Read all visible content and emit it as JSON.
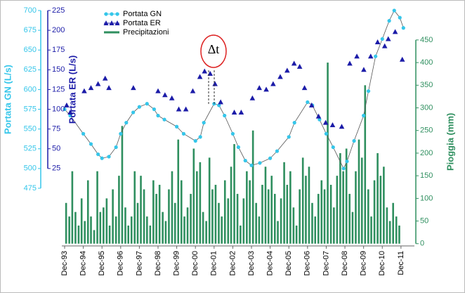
{
  "chart_data": {
    "type": "combo",
    "annotation": "Δt",
    "xlim": [
      1993.77,
      2012.64
    ],
    "xticks": [
      {
        "value": 1993.92,
        "label": "Dec-93"
      },
      {
        "value": 1994.92,
        "label": "Dec-94"
      },
      {
        "value": 1995.92,
        "label": "Dec-95"
      },
      {
        "value": 1996.92,
        "label": "Dec-96"
      },
      {
        "value": 1997.92,
        "label": "Dec-97"
      },
      {
        "value": 1998.92,
        "label": "Dec-98"
      },
      {
        "value": 1999.92,
        "label": "Dec-99"
      },
      {
        "value": 2000.92,
        "label": "Dec-00"
      },
      {
        "value": 2001.92,
        "label": "Dec-01"
      },
      {
        "value": 2002.92,
        "label": "Dec-02"
      },
      {
        "value": 2003.92,
        "label": "Dec-03"
      },
      {
        "value": 2004.92,
        "label": "Dec-04"
      },
      {
        "value": 2005.92,
        "label": "Dec-05"
      },
      {
        "value": 2006.92,
        "label": "Dec-06"
      },
      {
        "value": 2007.92,
        "label": "Dec-07"
      },
      {
        "value": 2008.92,
        "label": "Dec-08"
      },
      {
        "value": 2009.92,
        "label": "Dec-09"
      },
      {
        "value": 2010.92,
        "label": "Dec-10"
      },
      {
        "value": 2011.92,
        "label": "Dec-11"
      }
    ],
    "ylabel": "Portata GN (L/s)",
    "ylim": [
      402,
      700
    ],
    "yticks": [
      475,
      500,
      525,
      550,
      575,
      600,
      625,
      650,
      675,
      700
    ],
    "y2label": "Portata ER (L/s)",
    "y2lim": [
      -73,
      225
    ],
    "y2ticks": [
      25,
      50,
      75,
      100,
      125,
      150,
      175,
      200,
      225
    ],
    "y3label": "Pioggia (mm)",
    "y3lim": [
      -5,
      515
    ],
    "y3ticks": [
      0,
      50,
      100,
      150,
      200,
      250,
      300,
      350,
      400,
      450
    ],
    "series": [
      {
        "name": "Portata GN",
        "kind": "line",
        "color": "#35c6ea",
        "x": [
          1993.92,
          1994.22,
          1994.92,
          1995.33,
          1995.71,
          1995.92,
          1996.29,
          1996.67,
          1996.92,
          1997.22,
          1997.59,
          1997.92,
          1998.33,
          1998.71,
          1998.92,
          1999.26,
          1999.92,
          2000.29,
          2000.92,
          2001.18,
          2001.37,
          2001.92,
          2002.18,
          2002.48,
          2002.92,
          2003.22,
          2003.59,
          2003.92,
          2004.37,
          2004.92,
          2005.29,
          2005.92,
          2006.22,
          2006.92,
          2007.18,
          2007.56,
          2007.92,
          2008.29,
          2008.85,
          2009.03,
          2009.41,
          2009.92,
          2010.18,
          2010.56,
          2010.92,
          2011.29,
          2011.56,
          2011.86,
          2012.05
        ],
        "values": [
          575,
          567,
          544,
          531,
          518,
          513,
          515,
          527,
          544,
          558,
          571,
          578,
          582,
          575,
          567,
          562,
          553,
          544,
          535,
          540,
          558,
          582,
          580,
          567,
          544,
          527,
          510,
          504,
          507,
          513,
          522,
          540,
          558,
          584,
          580,
          562,
          544,
          527,
          500,
          509,
          535,
          567,
          598,
          642,
          664,
          687,
          700,
          691,
          678
        ]
      },
      {
        "name": "Portata ER",
        "kind": "markers",
        "axis": "y2",
        "color": "#1c1ca8",
        "x": [
          1994.03,
          1994.22,
          1994.5,
          1994.97,
          1995.33,
          1995.71,
          1996.09,
          1996.29,
          1996.5,
          1997.6,
          1997.8,
          1998.92,
          1999.29,
          1999.66,
          2000.03,
          2000.41,
          2000.78,
          2001.16,
          2001.41,
          2001.71,
          2001.97,
          2002.27,
          2002.5,
          2003.0,
          2003.37,
          2003.6,
          2003.97,
          2004.34,
          2004.71,
          2005.08,
          2005.46,
          2005.83,
          2006.2,
          2006.5,
          2006.76,
          2007.14,
          2007.51,
          2007.89,
          2008.26,
          2008.75,
          2009.0,
          2009.18,
          2009.56,
          2009.93,
          2010.3,
          2010.67,
          2011.05,
          2011.24,
          2011.61,
          2011.99
        ],
        "values": [
          105,
          96,
          null,
          123,
          127,
          132,
          139,
          127,
          null,
          127,
          null,
          123,
          118,
          114,
          100,
          100,
          123,
          141,
          148,
          145,
          132,
          109,
          null,
          96,
          96,
          null,
          114,
          127,
          125,
          132,
          141,
          149,
          158,
          154,
          127,
          105,
          91,
          83,
          80,
          78,
          null,
          158,
          167,
          150,
          167,
          185,
          180,
          189,
          198,
          163
        ]
      },
      {
        "name": "Precipitazioni",
        "kind": "bars",
        "axis": "y3",
        "color": "#2f8f5f",
        "x": [
          1994.0,
          1994.17,
          1994.33,
          1994.5,
          1994.67,
          1994.83,
          1995.0,
          1995.17,
          1995.33,
          1995.5,
          1995.67,
          1995.83,
          1996.0,
          1996.17,
          1996.33,
          1996.5,
          1996.67,
          1996.83,
          1997.0,
          1997.17,
          1997.33,
          1997.5,
          1997.67,
          1997.83,
          1998.0,
          1998.17,
          1998.33,
          1998.5,
          1998.67,
          1998.83,
          1999.0,
          1999.17,
          1999.33,
          1999.5,
          1999.67,
          1999.83,
          2000.0,
          2000.17,
          2000.33,
          2000.5,
          2000.67,
          2000.83,
          2001.0,
          2001.17,
          2001.33,
          2001.5,
          2001.67,
          2001.83,
          2002.0,
          2002.17,
          2002.33,
          2002.5,
          2002.67,
          2002.83,
          2003.0,
          2003.17,
          2003.33,
          2003.5,
          2003.67,
          2003.83,
          2004.0,
          2004.17,
          2004.33,
          2004.5,
          2004.67,
          2004.83,
          2005.0,
          2005.17,
          2005.33,
          2005.5,
          2005.67,
          2005.83,
          2006.0,
          2006.17,
          2006.33,
          2006.5,
          2006.67,
          2006.83,
          2007.0,
          2007.17,
          2007.33,
          2007.5,
          2007.67,
          2007.83,
          2008.0,
          2008.17,
          2008.33,
          2008.5,
          2008.67,
          2008.83,
          2009.0,
          2009.17,
          2009.33,
          2009.5,
          2009.67,
          2009.83,
          2010.0,
          2010.17,
          2010.33,
          2010.5,
          2010.67,
          2010.83,
          2011.0,
          2011.17,
          2011.33,
          2011.5,
          2011.67,
          2011.83
        ],
        "values": [
          90,
          60,
          160,
          70,
          40,
          100,
          50,
          140,
          60,
          30,
          160,
          70,
          80,
          100,
          40,
          120,
          60,
          150,
          260,
          80,
          40,
          60,
          160,
          90,
          150,
          120,
          60,
          40,
          140,
          110,
          130,
          70,
          50,
          120,
          160,
          90,
          230,
          140,
          60,
          80,
          110,
          210,
          160,
          180,
          70,
          50,
          190,
          120,
          130,
          90,
          60,
          140,
          100,
          170,
          220,
          110,
          40,
          100,
          160,
          140,
          250,
          90,
          60,
          130,
          170,
          120,
          150,
          110,
          50,
          100,
          180,
          130,
          160,
          80,
          40,
          120,
          190,
          150,
          170,
          90,
          60,
          110,
          140,
          120,
          400,
          130,
          80,
          150,
          200,
          160,
          210,
          110,
          70,
          160,
          230,
          190,
          350,
          120,
          60,
          140,
          200,
          150,
          170,
          80,
          50,
          90,
          60,
          40
        ]
      }
    ]
  }
}
